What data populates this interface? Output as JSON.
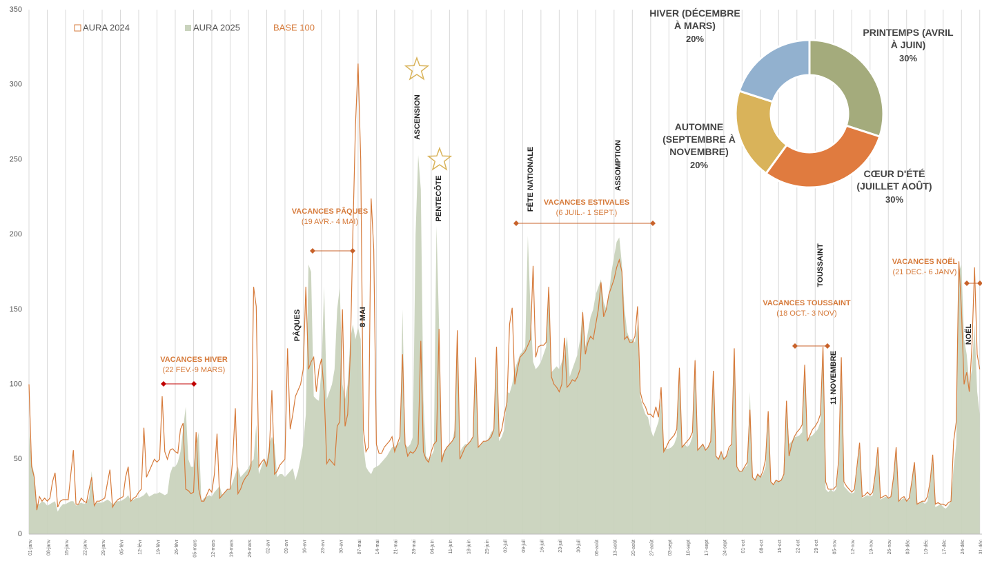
{
  "chart_data": [
    {
      "type": "line",
      "ylim": [
        0,
        350
      ],
      "yticks": [
        0,
        50,
        100,
        150,
        200,
        250,
        300,
        350
      ],
      "grid": true,
      "categories": [
        "01-janv",
        null,
        null,
        null,
        null,
        null,
        null,
        "08-janv",
        null,
        null,
        null,
        null,
        null,
        null,
        "15-janv",
        null,
        null,
        null,
        null,
        null,
        null,
        "22-janv",
        null,
        null,
        null,
        null,
        null,
        null,
        "29-janv",
        null,
        null,
        null,
        null,
        null,
        null,
        "05-févr",
        null,
        null,
        null,
        null,
        null,
        null,
        "12-févr",
        null,
        null,
        null,
        null,
        null,
        null,
        "19-févr",
        null,
        null,
        null,
        null,
        null,
        null,
        "26-févr",
        null,
        null,
        null,
        null,
        null,
        null,
        "05-mars",
        null,
        null,
        null,
        null,
        null,
        null,
        "12-mars",
        null,
        null,
        null,
        null,
        null,
        null,
        "19-mars",
        null,
        null,
        null,
        null,
        null,
        null,
        "26-mars",
        null,
        null,
        null,
        null,
        null,
        null,
        "02-avr",
        null,
        null,
        null,
        null,
        null,
        null,
        "09-avr",
        null,
        null,
        null,
        null,
        null,
        null,
        "16-avr",
        null,
        null,
        null,
        null,
        null,
        null,
        "23-avr",
        null,
        null,
        null,
        null,
        null,
        null,
        "30-avr",
        null,
        null,
        null,
        null,
        null,
        null,
        "07-mai",
        null,
        null,
        null,
        null,
        null,
        null,
        "14-mai",
        null,
        null,
        null,
        null,
        null,
        null,
        "21-mai",
        null,
        null,
        null,
        null,
        null,
        null,
        "28-mai",
        null,
        null,
        null,
        null,
        null,
        null,
        "04-juin",
        null,
        null,
        null,
        null,
        null,
        null,
        "11-juin",
        null,
        null,
        null,
        null,
        null,
        null,
        "18-juin",
        null,
        null,
        null,
        null,
        null,
        null,
        "25-juin",
        null,
        null,
        null,
        null,
        null,
        null,
        "02-juil",
        null,
        null,
        null,
        null,
        null,
        null,
        "09-juil",
        null,
        null,
        null,
        null,
        null,
        null,
        "16-juil",
        null,
        null,
        null,
        null,
        null,
        null,
        "23-juil",
        null,
        null,
        null,
        null,
        null,
        null,
        "30-juil",
        null,
        null,
        null,
        null,
        null,
        null,
        "06-août",
        null,
        null,
        null,
        null,
        null,
        null,
        "13-août",
        null,
        null,
        null,
        null,
        null,
        null,
        "20-août",
        null,
        null,
        null,
        null,
        null,
        null,
        "27-août",
        null,
        null,
        null,
        null,
        null,
        null,
        "03-sept",
        null,
        null,
        null,
        null,
        null,
        null,
        "10-sept",
        null,
        null,
        null,
        null,
        null,
        null,
        "17-sept",
        null,
        null,
        null,
        null,
        null,
        null,
        "24-sept",
        null,
        null,
        null,
        null,
        null,
        null,
        "01-oct",
        null,
        null,
        null,
        null,
        null,
        null,
        "08-oct",
        null,
        null,
        null,
        null,
        null,
        null,
        "15-oct",
        null,
        null,
        null,
        null,
        null,
        null,
        "22-oct",
        null,
        null,
        null,
        null,
        null,
        null,
        "29-oct",
        null,
        null,
        null,
        null,
        null,
        null,
        "05-nov",
        null,
        null,
        null,
        null,
        null,
        null,
        "12-nov",
        null,
        null,
        null,
        null,
        null,
        null,
        "19-nov",
        null,
        null,
        null,
        null,
        null,
        null,
        "26-nov",
        null,
        null,
        null,
        null,
        null,
        null,
        "03-déc",
        null,
        null,
        null,
        null,
        null,
        null,
        "10-déc",
        null,
        null,
        null,
        null,
        null,
        null,
        "17-déc",
        null,
        null,
        null,
        null,
        null,
        null,
        "24-déc",
        null,
        null,
        null,
        null,
        null,
        null,
        "31-déc"
      ],
      "series": [
        {
          "name": "AURA 2024",
          "kind": "line",
          "color": "#d67a3a",
          "values": [
            100,
            45,
            38,
            16,
            25,
            22,
            24,
            22,
            24,
            35,
            41,
            18,
            22,
            23,
            23,
            23,
            40,
            56,
            20,
            20,
            24,
            22,
            21,
            30,
            38,
            19,
            22,
            22,
            23,
            24,
            34,
            43,
            18,
            21,
            23,
            24,
            25,
            38,
            45,
            22,
            24,
            25,
            28,
            30,
            71,
            38,
            42,
            46,
            50,
            48,
            50,
            92,
            55,
            50,
            56,
            57,
            55,
            54,
            70,
            74,
            30,
            29,
            27,
            28,
            68,
            30,
            22,
            22,
            26,
            30,
            28,
            40,
            67,
            24,
            26,
            28,
            30,
            30,
            50,
            84,
            27,
            30,
            35,
            38,
            40,
            45,
            165,
            152,
            45,
            48,
            50,
            45,
            55,
            96,
            40,
            42,
            46,
            48,
            50,
            124,
            70,
            80,
            92,
            96,
            100,
            110,
            165,
            110,
            115,
            118,
            95,
            110,
            117,
            95,
            47,
            50,
            48,
            46,
            72,
            75,
            150,
            72,
            80,
            120,
            200,
            273,
            314,
            250,
            70,
            55,
            58,
            224,
            190,
            60,
            54,
            54,
            58,
            60,
            62,
            65,
            55,
            60,
            65,
            120,
            60,
            52,
            55,
            54,
            56,
            60,
            129,
            55,
            50,
            48,
            55,
            60,
            62,
            137,
            48,
            55,
            58,
            60,
            62,
            65,
            136,
            50,
            54,
            58,
            60,
            62,
            65,
            118,
            58,
            60,
            62,
            62,
            63,
            65,
            70,
            125,
            65,
            70,
            80,
            88,
            140,
            151,
            100,
            110,
            118,
            120,
            122,
            126,
            130,
            179,
            118,
            125,
            126,
            126,
            128,
            165,
            105,
            100,
            98,
            95,
            100,
            131,
            98,
            100,
            103,
            102,
            105,
            110,
            148,
            120,
            128,
            132,
            130,
            140,
            150,
            168,
            145,
            150,
            160,
            165,
            170,
            178,
            183,
            175,
            130,
            132,
            128,
            128,
            132,
            152,
            95,
            88,
            85,
            80,
            80,
            78,
            85,
            78,
            98,
            55,
            58,
            62,
            64,
            66,
            70,
            111,
            58,
            60,
            62,
            64,
            68,
            116,
            56,
            58,
            60,
            56,
            58,
            62,
            109,
            52,
            50,
            55,
            50,
            52,
            58,
            60,
            124,
            45,
            42,
            42,
            45,
            48,
            83,
            38,
            36,
            40,
            38,
            42,
            50,
            82,
            35,
            33,
            36,
            35,
            36,
            40,
            89,
            52,
            60,
            65,
            68,
            70,
            73,
            113,
            62,
            66,
            70,
            72,
            75,
            80,
            125,
            35,
            30,
            30,
            30,
            32,
            50,
            118,
            35,
            32,
            30,
            28,
            30,
            45,
            61,
            25,
            26,
            28,
            26,
            28,
            40,
            58,
            24,
            25,
            26,
            24,
            25,
            38,
            58,
            22,
            24,
            25,
            22,
            24,
            35,
            48,
            20,
            21,
            22,
            22,
            25,
            35,
            53,
            20,
            21,
            20,
            20,
            19,
            21,
            22,
            62,
            75,
            182,
            150,
            100,
            108,
            95,
            125,
            178,
            120,
            110
          ]
        },
        {
          "name": "AURA 2025",
          "kind": "area",
          "color": "#c9d3bd",
          "values": [
            68,
            48,
            40,
            20,
            20,
            22,
            21,
            19,
            20,
            21,
            22,
            15,
            18,
            20,
            20,
            21,
            22,
            22,
            19,
            20,
            21,
            20,
            21,
            24,
            42,
            20,
            21,
            21,
            21,
            22,
            23,
            22,
            20,
            21,
            22,
            22,
            23,
            24,
            26,
            22,
            23,
            24,
            24,
            25,
            26,
            28,
            25,
            26,
            27,
            27,
            28,
            27,
            26,
            27,
            40,
            45,
            45,
            48,
            55,
            70,
            85,
            50,
            45,
            45,
            60,
            68,
            22,
            24,
            25,
            26,
            25,
            28,
            30,
            32,
            26,
            28,
            30,
            30,
            35,
            40,
            45,
            38,
            40,
            42,
            44,
            48,
            50,
            73,
            40,
            45,
            50,
            48,
            60,
            65,
            60,
            38,
            40,
            40,
            38,
            40,
            42,
            44,
            36,
            42,
            50,
            60,
            80,
            180,
            175,
            92,
            90,
            89,
            110,
            165,
            90,
            95,
            100,
            110,
            150,
            165,
            100,
            90,
            100,
            130,
            140,
            130,
            138,
            130,
            60,
            45,
            42,
            40,
            44,
            45,
            46,
            48,
            50,
            52,
            55,
            58,
            58,
            60,
            62,
            150,
            60,
            58,
            60,
            65,
            200,
            253,
            230,
            90,
            52,
            50,
            52,
            56,
            206,
            140,
            52,
            55,
            58,
            60,
            62,
            70,
            130,
            55,
            58,
            60,
            60,
            62,
            65,
            118,
            58,
            60,
            62,
            62,
            64,
            68,
            70,
            125,
            62,
            65,
            70,
            95,
            94,
            100,
            110,
            115,
            120,
            122,
            125,
            199,
            150,
            115,
            110,
            112,
            115,
            120,
            125,
            165,
            108,
            110,
            112,
            110,
            115,
            120,
            132,
            105,
            110,
            115,
            120,
            130,
            150,
            125,
            135,
            145,
            150,
            160,
            165,
            170,
            155,
            150,
            160,
            175,
            185,
            195,
            198,
            180,
            150,
            135,
            130,
            130,
            128,
            140,
            92,
            85,
            80,
            78,
            70,
            65,
            70,
            75,
            90,
            58,
            57,
            57,
            58,
            60,
            65,
            110,
            58,
            60,
            58,
            60,
            65,
            118,
            56,
            58,
            60,
            56,
            58,
            62,
            108,
            52,
            50,
            55,
            50,
            52,
            56,
            60,
            118,
            45,
            42,
            42,
            44,
            46,
            95,
            38,
            36,
            40,
            38,
            40,
            45,
            78,
            35,
            33,
            36,
            35,
            36,
            40,
            88,
            60,
            62,
            65,
            65,
            66,
            68,
            108,
            62,
            65,
            66,
            68,
            70,
            75,
            120,
            30,
            28,
            30,
            28,
            30,
            45,
            110,
            32,
            30,
            28,
            27,
            28,
            42,
            58,
            24,
            25,
            26,
            25,
            26,
            38,
            55,
            23,
            24,
            25,
            24,
            25,
            36,
            55,
            22,
            23,
            24,
            22,
            23,
            35,
            48,
            20,
            21,
            22,
            20,
            22,
            33,
            50,
            18,
            19,
            20,
            18,
            17,
            19,
            22,
            45,
            60,
            175,
            180,
            130,
            120,
            100,
            110,
            140,
            95,
            80
          ]
        }
      ],
      "legend_note": "BASE 100",
      "periods": [
        {
          "title": "VACANCES HIVER",
          "dates": "(22 FEV.-9 MARS)"
        },
        {
          "title": "VACANCES PÂQUES",
          "dates": "(19 AVR.- 4 MAI)"
        },
        {
          "title": "VACANCES ESTIVALES",
          "dates": "(6 JUIL.- 1 SEPT.)"
        },
        {
          "title": "VACANCES TOUSSAINT",
          "dates": "(18 OCT.- 3 NOV)"
        },
        {
          "title": "VACANCES NOËL",
          "dates": "(21 DEC.- 6 JANV)"
        }
      ],
      "holidays": [
        "PÂQUES",
        "8 MAI",
        "ASCENSION",
        "PENTECÔTE",
        "FÊTE NATIONALE",
        "ASSOMPTION",
        "TOUSSAINT",
        "11 NOVEMBRE",
        "NOËL"
      ]
    },
    {
      "type": "pie",
      "categories": [
        "PRINTEMPS (AVRIL À JUIN)",
        "CŒUR D'ÉTÉ (JUILLET AOÛT)",
        "AUTOMNE (SEPTEMBRE À NOVEMBRE)",
        "HIVER (DÉCEMBRE À MARS)"
      ],
      "values": [
        30,
        30,
        20,
        20
      ],
      "value_labels": [
        "30%",
        "30%",
        "20%",
        "20%"
      ],
      "colors": [
        "#a4ab7c",
        "#e07b3f",
        "#d9b35a",
        "#92b1cf"
      ]
    }
  ]
}
